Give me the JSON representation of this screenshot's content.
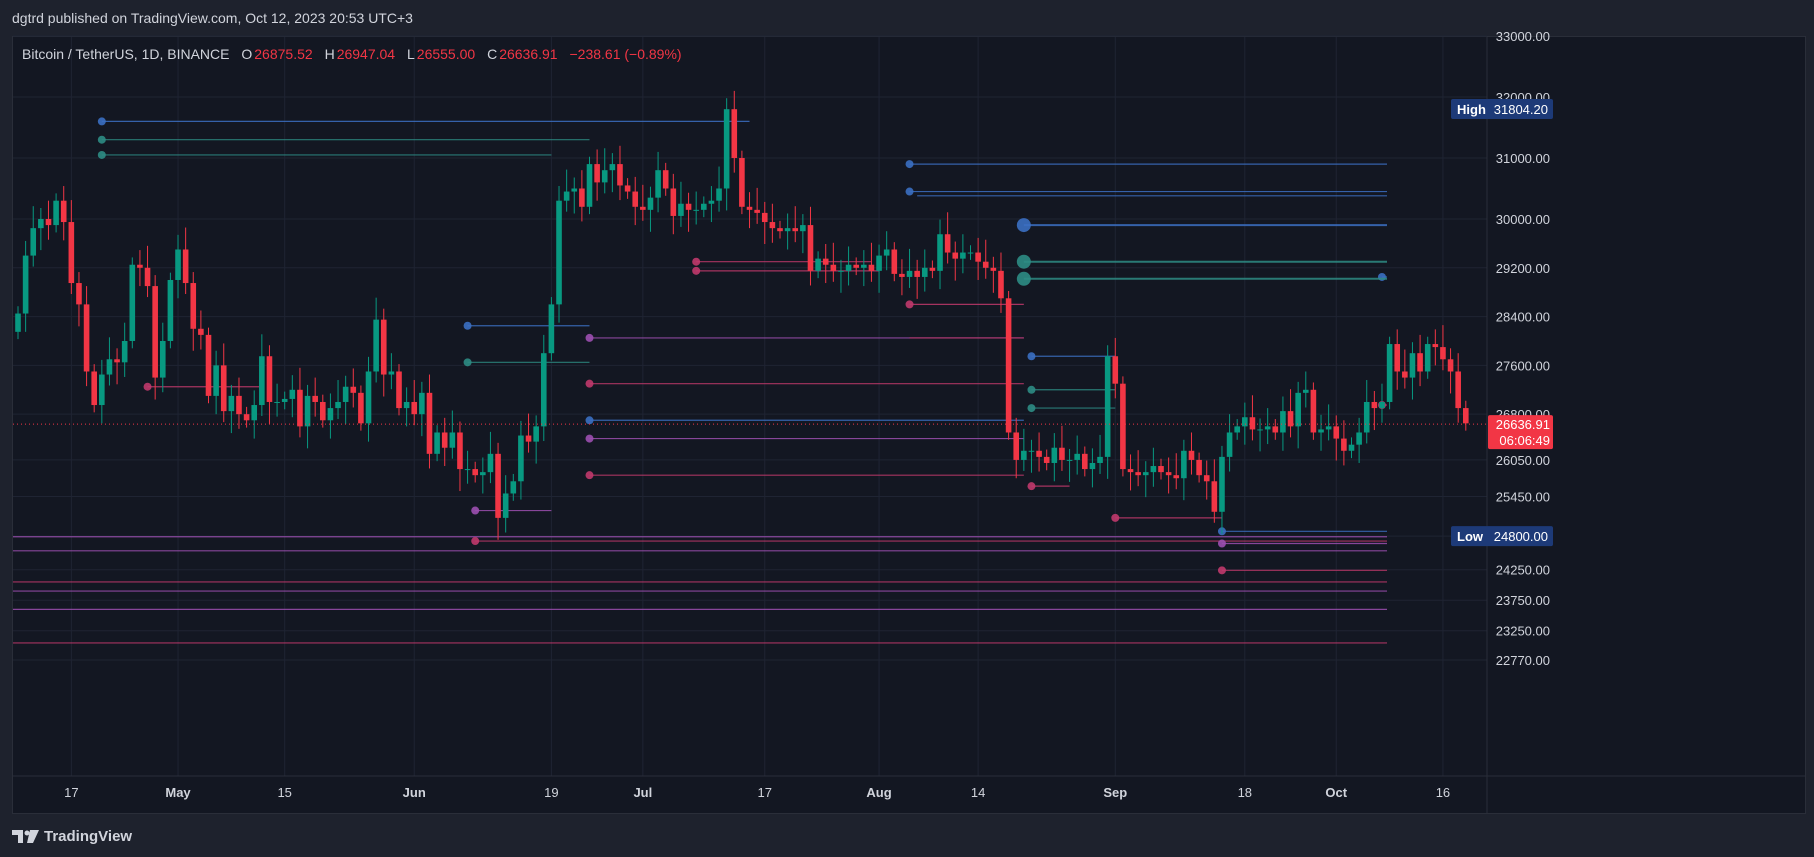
{
  "header": {
    "published": "dgtrd published on TradingView.com, Oct 12, 2023 20:53 UTC+3"
  },
  "legend": {
    "symbol": "Bitcoin / TetherUS, 1D, BINANCE",
    "o_label": "O",
    "o_value": "26875.52",
    "h_label": "H",
    "h_value": "26947.04",
    "l_label": "L",
    "l_value": "26555.00",
    "c_label": "C",
    "c_value": "26636.91",
    "change": "−238.61 (−0.89%)"
  },
  "footer": {
    "brand": "TradingView"
  },
  "colors": {
    "up": "#089981",
    "down": "#f23645",
    "bg": "#131722",
    "page": "#1e222d",
    "grid": "#1f2433",
    "text": "#d1d4dc",
    "blue": "#2962ff",
    "purple": "#9c27b0"
  },
  "chart_data": {
    "type": "candlestick",
    "title": "Bitcoin / TetherUS, 1D, BINANCE",
    "y_ticks": [
      33000,
      32000,
      31000,
      30000,
      29200,
      28400,
      27600,
      26800,
      26050,
      25450,
      24800,
      24250,
      23750,
      23250,
      22770
    ],
    "y_tick_labels": [
      "33000.00",
      "32000.00",
      "31000.00",
      "30000.00",
      "29200.00",
      "28400.00",
      "27600.00",
      "26800.00",
      "26050.00",
      "25450.00",
      "24800.00",
      "24250.00",
      "23750.00",
      "23250.00",
      "22770.00"
    ],
    "x_ticks": [
      {
        "i": 7,
        "label": "17"
      },
      {
        "i": 21,
        "label": "May"
      },
      {
        "i": 35,
        "label": "15"
      },
      {
        "i": 52,
        "label": "Jun"
      },
      {
        "i": 70,
        "label": "19"
      },
      {
        "i": 82,
        "label": "Jul"
      },
      {
        "i": 98,
        "label": "17"
      },
      {
        "i": 113,
        "label": "Aug"
      },
      {
        "i": 126,
        "label": "14"
      },
      {
        "i": 144,
        "label": "Sep"
      },
      {
        "i": 161,
        "label": "18"
      },
      {
        "i": 173,
        "label": "Oct"
      },
      {
        "i": 187,
        "label": "16"
      }
    ],
    "last_price_label": "26636.91",
    "countdown": "06:06:49",
    "last_price": 26636.91,
    "high": {
      "label": "High",
      "value": "31804.20"
    },
    "low": {
      "label": "Low",
      "value": "24800.00"
    },
    "closes": [
      28450,
      29400,
      29850,
      30000,
      29900,
      30300,
      29950,
      28950,
      28600,
      27500,
      26950,
      27450,
      27700,
      27650,
      28000,
      29250,
      29200,
      28900,
      27400,
      28000,
      29000,
      29500,
      28950,
      28200,
      28100,
      27100,
      27600,
      26850,
      27100,
      26800,
      26700,
      26950,
      27750,
      27000,
      27000,
      27050,
      27200,
      26600,
      27100,
      27000,
      26700,
      26900,
      27000,
      27250,
      27150,
      26650,
      27500,
      28350,
      27450,
      27500,
      26900,
      27000,
      26800,
      27150,
      26150,
      26500,
      26250,
      26500,
      25900,
      25900,
      25800,
      25850,
      26150,
      25100,
      25500,
      25700,
      26450,
      26350,
      26600,
      27800,
      28600,
      30300,
      30450,
      30500,
      30200,
      30900,
      30600,
      30800,
      30900,
      30550,
      30450,
      30200,
      30150,
      30350,
      30800,
      30500,
      30050,
      30250,
      30150,
      30150,
      30250,
      30300,
      30500,
      31800,
      31000,
      30200,
      30150,
      30100,
      29950,
      29850,
      29800,
      29850,
      29800,
      29900,
      29150,
      29350,
      29250,
      29150,
      29150,
      29250,
      29200,
      29250,
      29150,
      29400,
      29500,
      29100,
      29050,
      29150,
      29050,
      29200,
      29150,
      29750,
      29450,
      29350,
      29450,
      29450,
      29300,
      29200,
      29150,
      28700,
      26500,
      26050,
      26200,
      26200,
      26100,
      26000,
      26250,
      26050,
      26050,
      26150,
      25900,
      26000,
      26100,
      27750,
      27300,
      25900,
      25850,
      25800,
      25850,
      25950,
      25850,
      25800,
      25750,
      26200,
      26050,
      25800,
      25700,
      25200,
      26100,
      26500,
      26600,
      26750,
      26550,
      26550,
      26600,
      26500,
      26850,
      26600,
      27150,
      27200,
      26500,
      26550,
      26600,
      26400,
      26200,
      26300,
      26500,
      27000,
      26900,
      27000,
      27950,
      27500,
      27400,
      27800,
      27500,
      27950,
      27900,
      27700,
      27500,
      26900,
      26650
    ],
    "levels": [
      {
        "y": 31600,
        "x1": 11,
        "x2": 96,
        "c": "#3b6fc2",
        "dot": true
      },
      {
        "y": 31300,
        "x1": 11,
        "x2": 75,
        "c": "#2e8c84",
        "dot": true
      },
      {
        "y": 31050,
        "x1": 11,
        "x2": 70,
        "c": "#2e8c84",
        "dot": true
      },
      {
        "y": 30900,
        "x1": 117,
        "x2": 195,
        "c": "#3b6fc2",
        "dot": true
      },
      {
        "y": 30450,
        "x1": 117,
        "x2": 195,
        "c": "#3b6fc2",
        "dot": true
      },
      {
        "y": 30380,
        "x1": 118,
        "x2": 195,
        "c": "#3b6fc2",
        "dot": false
      },
      {
        "y": 29900,
        "x1": 132,
        "x2": 195,
        "c": "#3b6fc2",
        "dot": true,
        "big": true
      },
      {
        "y": 29300,
        "x1": 132,
        "x2": 195,
        "c": "#2e8c84",
        "dot": true,
        "big": true
      },
      {
        "y": 29050,
        "x1": 179,
        "x2": 195,
        "c": "#3b6fc2",
        "dot": true
      },
      {
        "y": 29020,
        "x1": 132,
        "x2": 195,
        "c": "#2e8c84",
        "dot": true,
        "big": true
      },
      {
        "y": 28250,
        "x1": 59,
        "x2": 75,
        "c": "#3b6fc2",
        "dot": true
      },
      {
        "y": 28050,
        "x1": 75,
        "x2": 132,
        "c": "#9c4fb0",
        "dot": true
      },
      {
        "y": 27650,
        "x1": 59,
        "x2": 75,
        "c": "#2e8c84",
        "dot": true
      },
      {
        "y": 27300,
        "x1": 75,
        "x2": 132,
        "c": "#c0396b",
        "dot": true
      },
      {
        "y": 26700,
        "x1": 75,
        "x2": 132,
        "c": "#3b6fc2",
        "dot": true
      },
      {
        "y": 26400,
        "x1": 75,
        "x2": 132,
        "c": "#9c4fb0",
        "dot": true
      },
      {
        "y": 25800,
        "x1": 75,
        "x2": 132,
        "c": "#c0396b",
        "dot": true
      },
      {
        "y": 25220,
        "x1": 60,
        "x2": 70,
        "c": "#9c4fb0",
        "dot": true
      },
      {
        "y": 25100,
        "x1": 144,
        "x2": 158,
        "c": "#c0396b",
        "dot": true
      },
      {
        "y": 24880,
        "x1": 158,
        "x2": 195,
        "c": "#3b6fc2",
        "dot": true
      },
      {
        "y": 24790,
        "x1": -5,
        "x2": 195,
        "c": "#9c4fb0",
        "dot": false
      },
      {
        "y": 24720,
        "x1": 60,
        "x2": 195,
        "c": "#c0396b",
        "dot": true
      },
      {
        "y": 24680,
        "x1": 158,
        "x2": 195,
        "c": "#9c4fb0",
        "dot": true
      },
      {
        "y": 24560,
        "x1": -5,
        "x2": 195,
        "c": "#9c4fb0",
        "dot": false
      },
      {
        "y": 24240,
        "x1": 158,
        "x2": 195,
        "c": "#c0396b",
        "dot": true
      },
      {
        "y": 24050,
        "x1": -5,
        "x2": 195,
        "c": "#c0396b",
        "dot": false
      },
      {
        "y": 23900,
        "x1": -5,
        "x2": 195,
        "c": "#9c4fb0",
        "dot": false
      },
      {
        "y": 23600,
        "x1": -5,
        "x2": 195,
        "c": "#9c4fb0",
        "dot": false
      },
      {
        "y": 23050,
        "x1": -5,
        "x2": 195,
        "c": "#c0396b",
        "dot": false
      },
      {
        "y": 27250,
        "x1": 17,
        "x2": 32,
        "c": "#c0396b",
        "dot": true
      },
      {
        "y": 29150,
        "x1": 89,
        "x2": 113,
        "c": "#c0396b",
        "dot": true
      },
      {
        "y": 29300,
        "x1": 89,
        "x2": 112,
        "c": "#c0396b",
        "dot": true
      },
      {
        "y": 28600,
        "x1": 117,
        "x2": 132,
        "c": "#c0396b",
        "dot": true
      },
      {
        "y": 28050,
        "x1": 117,
        "x2": 132,
        "c": "#c0396b",
        "dot": false
      },
      {
        "y": 27750,
        "x1": 133,
        "x2": 144,
        "c": "#3b6fc2",
        "dot": true
      },
      {
        "y": 27200,
        "x1": 133,
        "x2": 144,
        "c": "#2e8c84",
        "dot": true
      },
      {
        "y": 26900,
        "x1": 133,
        "x2": 144,
        "c": "#2e8c84",
        "dot": true
      },
      {
        "y": 26950,
        "x1": 179,
        "x2": 189,
        "c": "#c0396b",
        "dot": true
      },
      {
        "y": 25620,
        "x1": 133,
        "x2": 138,
        "c": "#c0396b",
        "dot": true
      }
    ]
  }
}
